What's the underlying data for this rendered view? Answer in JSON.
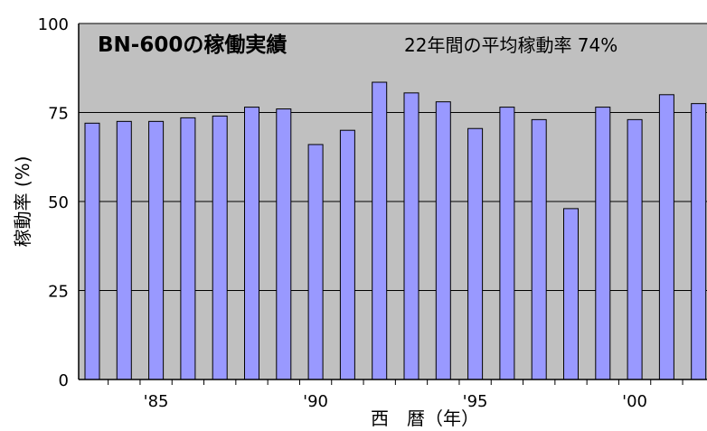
{
  "chart_data": {
    "type": "bar",
    "title": "BN-600の稼働実績",
    "subtitle": "22年間の平均稼動率 74%",
    "ylabel": "稼動率 (%)",
    "xlabel": "西　暦（年）",
    "ylim": [
      0,
      100
    ],
    "yticks": [
      "0",
      "25",
      "50",
      "75",
      "100"
    ],
    "xtick_labels": [
      "'85",
      "'90",
      "'95",
      "'00"
    ],
    "categories": [
      1983,
      1984,
      1985,
      1986,
      1987,
      1988,
      1989,
      1990,
      1991,
      1992,
      1993,
      1994,
      1995,
      1996,
      1997,
      1998,
      1999,
      2000,
      2001,
      2002
    ],
    "values": [
      72,
      72.5,
      72.5,
      73.5,
      74,
      76.5,
      76,
      66,
      70,
      83.5,
      80.5,
      78,
      70.5,
      76.5,
      73,
      48,
      76.5,
      73,
      80,
      77.5
    ],
    "grid": true,
    "colors": {
      "plot_bg": "#c0c0c0",
      "bar_fill": "#9999ff",
      "bar_stroke": "#000000"
    }
  }
}
